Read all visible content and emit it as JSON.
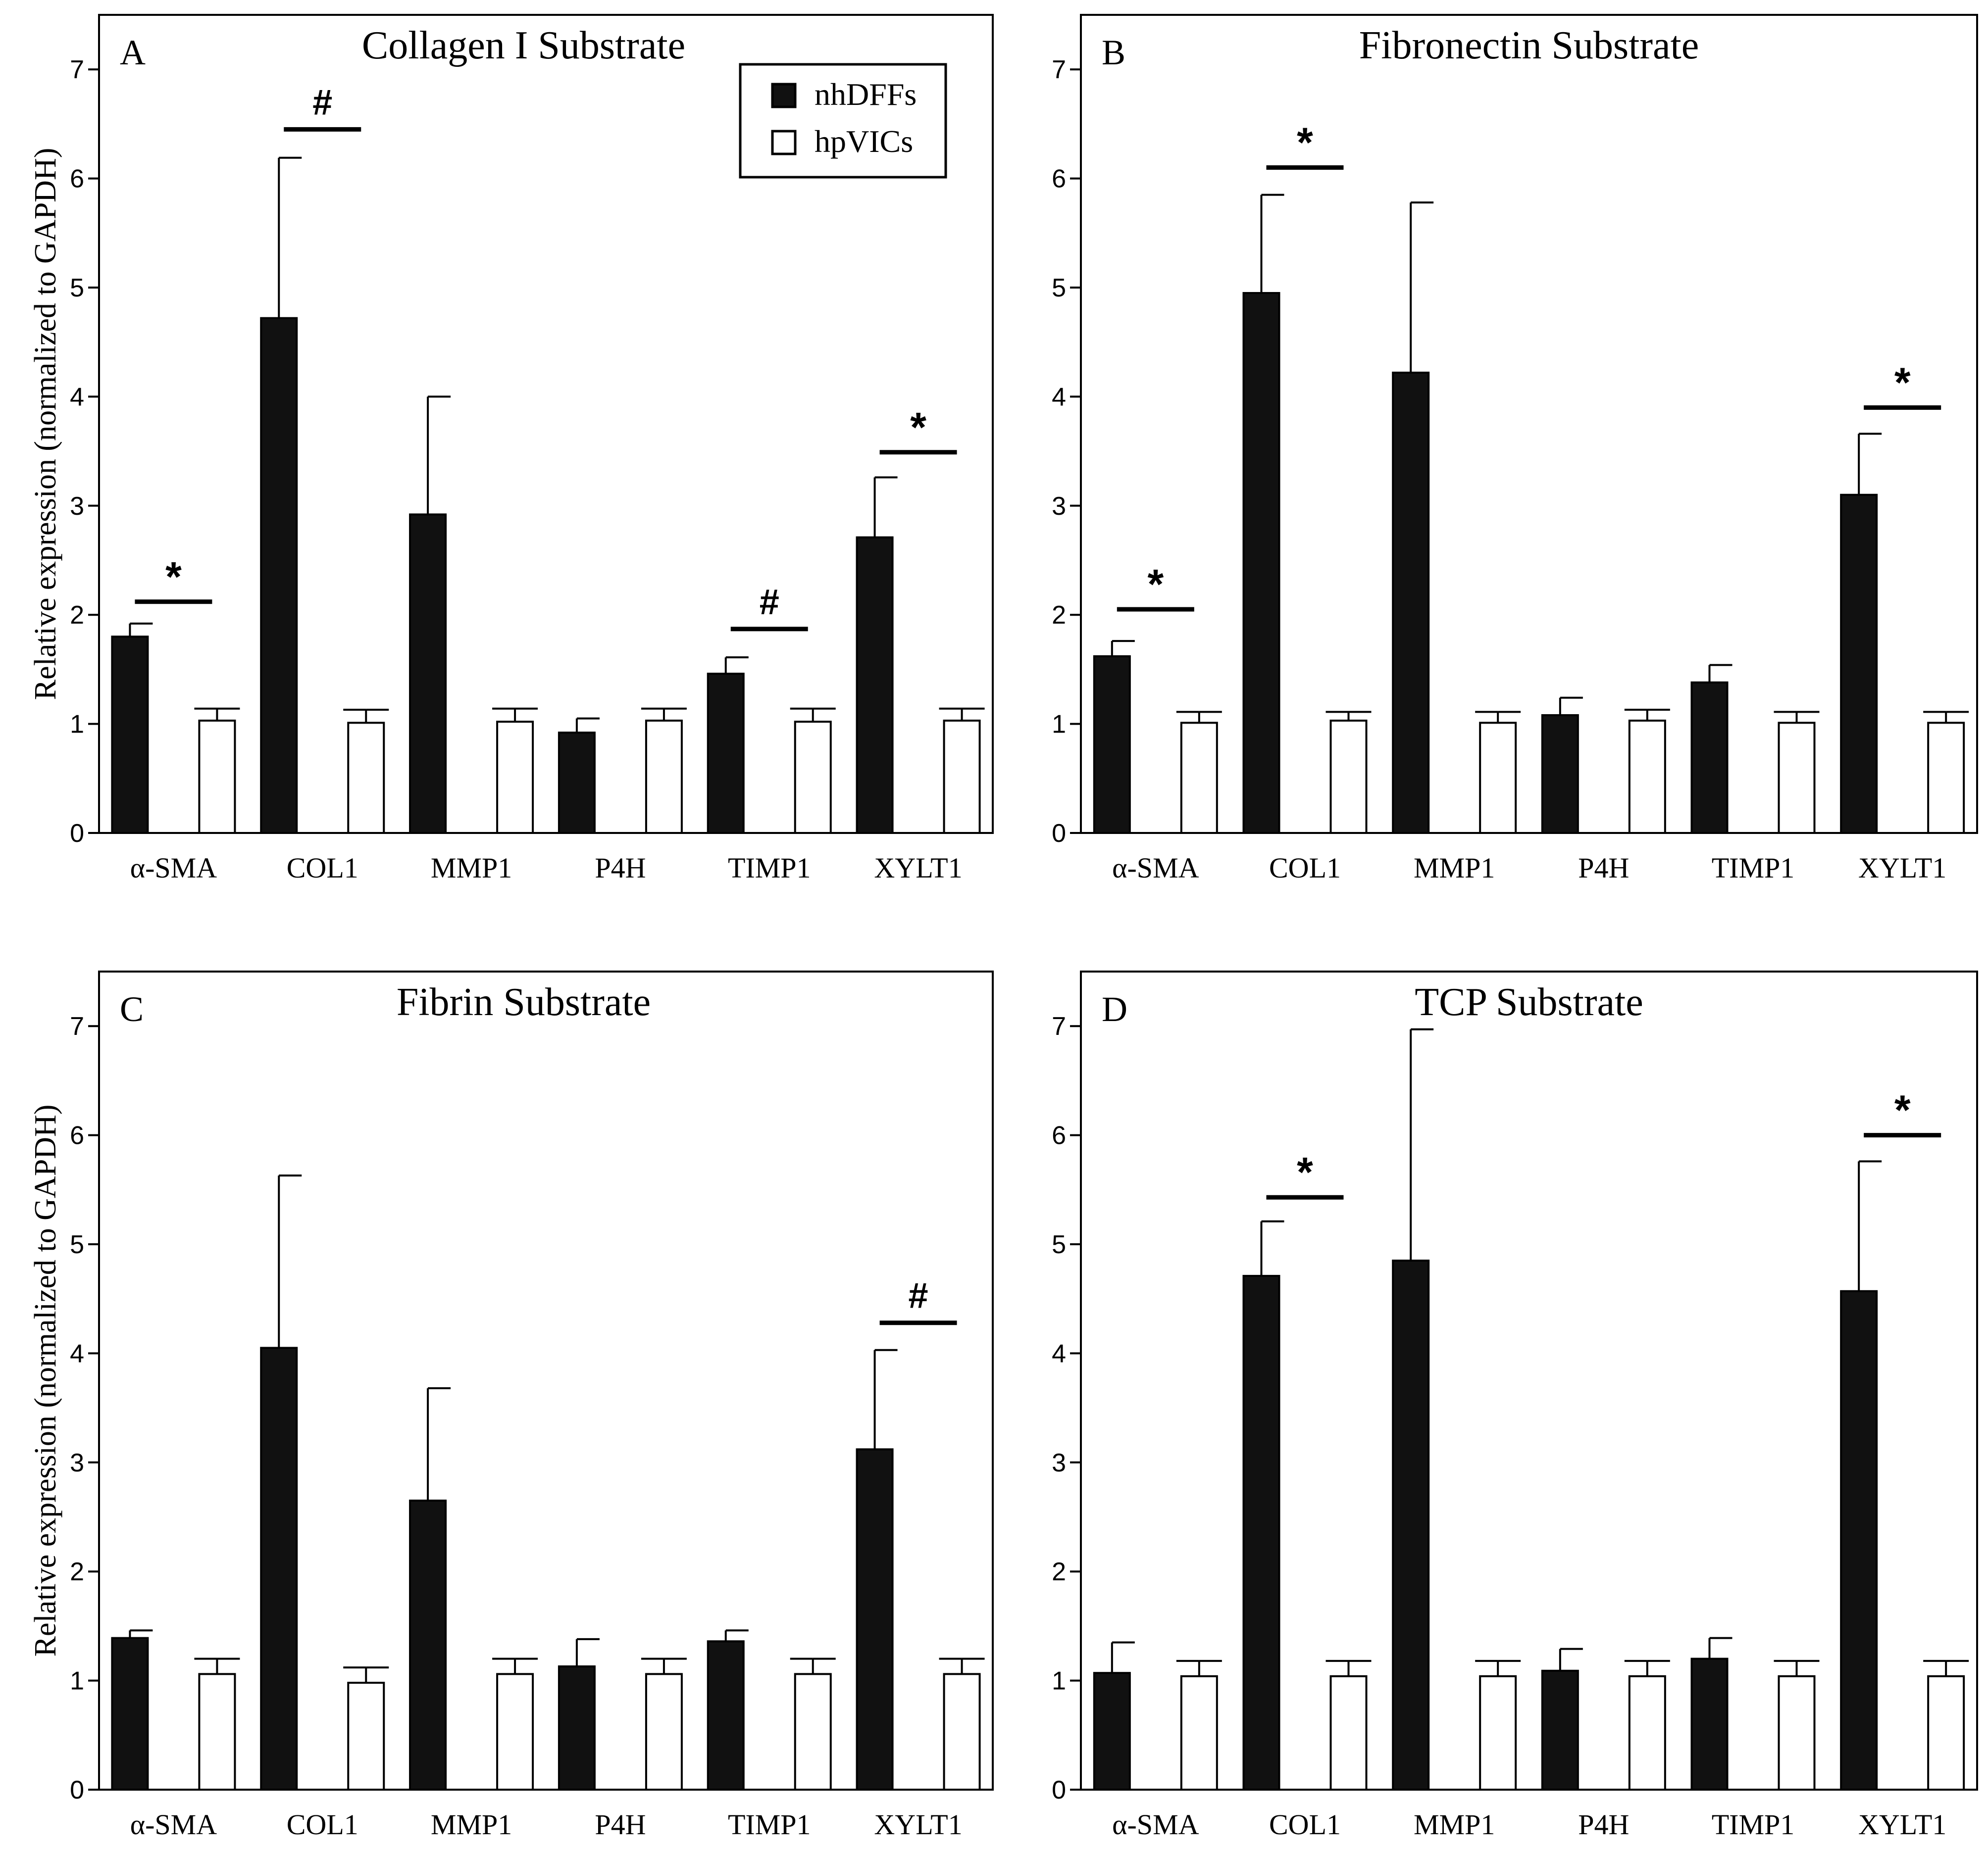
{
  "figure": {
    "ylabel": "Relative expression (normalized to GAPDH)",
    "legend": {
      "position": "top-right of panel A",
      "entries": [
        {
          "label": "nhDFFs",
          "color": "#111111"
        },
        {
          "label": "hpVICs",
          "color": "#ffffff"
        }
      ]
    },
    "colors": {
      "nhDFFs": "#111111",
      "hpVICs": "#ffffff",
      "axis": "#000000"
    }
  },
  "chart_data": [
    {
      "type": "bar",
      "panel": "A",
      "title": "Collagen I Substrate",
      "xlabel": "",
      "ylabel": "Relative expression (normalized to GAPDH)",
      "ylim": [
        0,
        7.5
      ],
      "yticks": [
        "0",
        "1",
        "2",
        "3",
        "4",
        "5",
        "6",
        "7"
      ],
      "categories": [
        "α-SMA",
        "COL1",
        "MMP1",
        "P4H",
        "TIMP1",
        "XYLT1"
      ],
      "series": [
        {
          "name": "nhDFFs",
          "values": [
            1.8,
            4.72,
            2.92,
            0.92,
            1.46,
            2.71
          ],
          "errors": [
            0.12,
            1.47,
            1.08,
            0.13,
            0.15,
            0.55
          ]
        },
        {
          "name": "hpVICs",
          "values": [
            1.03,
            1.01,
            1.02,
            1.03,
            1.02,
            1.03
          ],
          "errors": [
            0.11,
            0.12,
            0.12,
            0.11,
            0.12,
            0.11
          ]
        }
      ],
      "annotations": [
        {
          "category": "α-SMA",
          "symbol": "*",
          "level": 2.12
        },
        {
          "category": "COL1",
          "symbol": "#",
          "level": 6.45
        },
        {
          "category": "TIMP1",
          "symbol": "#",
          "level": 1.87
        },
        {
          "category": "XYLT1",
          "symbol": "*",
          "level": 3.49
        }
      ]
    },
    {
      "type": "bar",
      "panel": "B",
      "title": "Fibronectin Substrate",
      "xlabel": "",
      "ylabel": "",
      "ylim": [
        0,
        7.5
      ],
      "yticks": [
        "0",
        "1",
        "2",
        "3",
        "4",
        "5",
        "6",
        "7"
      ],
      "categories": [
        "α-SMA",
        "COL1",
        "MMP1",
        "P4H",
        "TIMP1",
        "XYLT1"
      ],
      "series": [
        {
          "name": "nhDFFs",
          "values": [
            1.62,
            4.95,
            4.22,
            1.08,
            1.38,
            3.1
          ],
          "errors": [
            0.14,
            0.9,
            1.56,
            0.16,
            0.16,
            0.56
          ]
        },
        {
          "name": "hpVICs",
          "values": [
            1.01,
            1.03,
            1.01,
            1.03,
            1.01,
            1.01
          ],
          "errors": [
            0.1,
            0.08,
            0.1,
            0.1,
            0.1,
            0.1
          ]
        }
      ],
      "annotations": [
        {
          "category": "α-SMA",
          "symbol": "*",
          "level": 2.05
        },
        {
          "category": "COL1",
          "symbol": "*",
          "level": 6.1
        },
        {
          "category": "XYLT1",
          "symbol": "*",
          "level": 3.9
        }
      ]
    },
    {
      "type": "bar",
      "panel": "C",
      "title": "Fibrin Substrate",
      "xlabel": "",
      "ylabel": "Relative expression (normalized to GAPDH)",
      "ylim": [
        0,
        7.5
      ],
      "yticks": [
        "0",
        "1",
        "2",
        "3",
        "4",
        "5",
        "6",
        "7"
      ],
      "categories": [
        "α-SMA",
        "COL1",
        "MMP1",
        "P4H",
        "TIMP1",
        "XYLT1"
      ],
      "series": [
        {
          "name": "nhDFFs",
          "values": [
            1.39,
            4.05,
            2.65,
            1.13,
            1.36,
            3.12
          ],
          "errors": [
            0.07,
            1.58,
            1.03,
            0.25,
            0.1,
            0.91
          ]
        },
        {
          "name": "hpVICs",
          "values": [
            1.06,
            0.98,
            1.06,
            1.06,
            1.06,
            1.06
          ],
          "errors": [
            0.14,
            0.14,
            0.14,
            0.14,
            0.14,
            0.14
          ]
        }
      ],
      "annotations": [
        {
          "category": "XYLT1",
          "symbol": "#",
          "level": 4.28
        }
      ]
    },
    {
      "type": "bar",
      "panel": "D",
      "title": "TCP Substrate",
      "xlabel": "",
      "ylabel": "",
      "ylim": [
        0,
        7.5
      ],
      "yticks": [
        "0",
        "1",
        "2",
        "3",
        "4",
        "5",
        "6",
        "7"
      ],
      "categories": [
        "α-SMA",
        "COL1",
        "MMP1",
        "P4H",
        "TIMP1",
        "XYLT1"
      ],
      "series": [
        {
          "name": "nhDFFs",
          "values": [
            1.07,
            4.71,
            4.85,
            1.09,
            1.2,
            4.57
          ],
          "errors": [
            0.28,
            0.5,
            2.12,
            0.2,
            0.19,
            1.19
          ]
        },
        {
          "name": "hpVICs",
          "values": [
            1.04,
            1.04,
            1.04,
            1.04,
            1.04,
            1.04
          ],
          "errors": [
            0.14,
            0.14,
            0.14,
            0.14,
            0.14,
            0.14
          ]
        }
      ],
      "annotations": [
        {
          "category": "COL1",
          "symbol": "*",
          "level": 5.43
        },
        {
          "category": "XYLT1",
          "symbol": "*",
          "level": 6.0
        }
      ]
    }
  ]
}
